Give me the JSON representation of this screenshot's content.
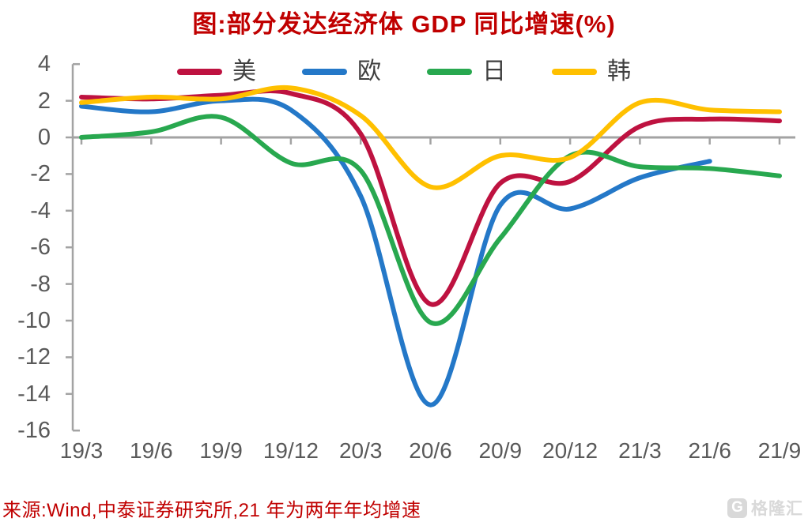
{
  "title": "图:部分发达经济体 GDP 同比增速(%)",
  "source_note": "来源:Wind,中泰证券研究所,21 年为两年年均增速",
  "watermark": {
    "logo": "G",
    "text": "格隆汇"
  },
  "colors": {
    "title": "#C00000",
    "source": "#C00000",
    "axis": "#A3A3A3",
    "tick_label": "#595959",
    "legend_label": "#3F3F3F",
    "watermark": "#D9D9D9",
    "us": "#BE1240",
    "eu": "#2478C8",
    "jp": "#28A84F",
    "kr": "#FFC000"
  },
  "chart_data": {
    "type": "line",
    "title": "图:部分发达经济体 GDP 同比增速(%)",
    "xlabel": "",
    "ylabel": "",
    "categories": [
      "19/3",
      "19/6",
      "19/9",
      "19/12",
      "20/3",
      "20/6",
      "20/9",
      "20/12",
      "21/3",
      "21/6",
      "21/9"
    ],
    "series": [
      {
        "key": "us",
        "name": "美",
        "color": "#BE1240",
        "values": [
          2.2,
          2.1,
          2.3,
          2.4,
          0.2,
          -9.1,
          -2.5,
          -2.4,
          0.6,
          1.0,
          0.9
        ]
      },
      {
        "key": "eu",
        "name": "欧",
        "color": "#2478C8",
        "values": [
          1.7,
          1.4,
          2.0,
          1.5,
          -3.2,
          -14.6,
          -3.7,
          -3.9,
          -2.2,
          -1.3,
          null
        ]
      },
      {
        "key": "jp",
        "name": "日",
        "color": "#28A84F",
        "values": [
          0.0,
          0.3,
          1.1,
          -1.4,
          -1.8,
          -10.1,
          -5.5,
          -1.0,
          -1.6,
          -1.7,
          -2.1
        ]
      },
      {
        "key": "kr",
        "name": "韩",
        "color": "#FFC000",
        "values": [
          1.9,
          2.2,
          2.1,
          2.7,
          1.2,
          -2.7,
          -1.0,
          -1.1,
          1.9,
          1.5,
          1.4
        ]
      }
    ],
    "ylim": [
      -16,
      4
    ],
    "yticks": [
      4,
      2,
      0,
      -2,
      -4,
      -6,
      -8,
      -10,
      -12,
      -14,
      -16
    ],
    "grid": false,
    "legend_position": "top",
    "notes": "2021 values are two-year average growth rates"
  }
}
